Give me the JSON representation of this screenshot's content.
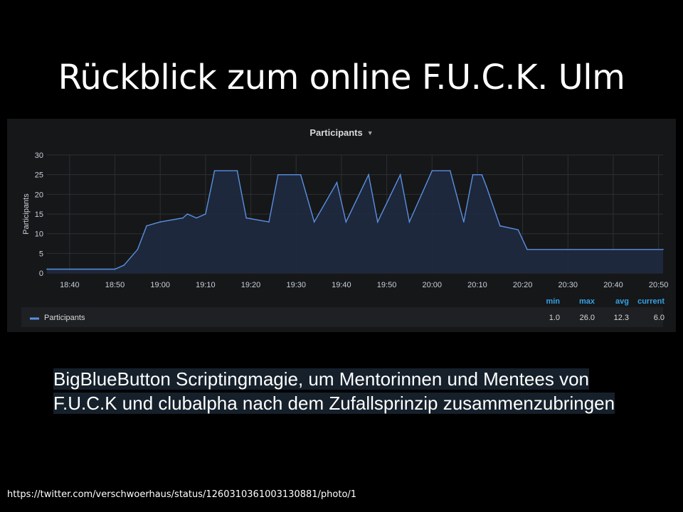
{
  "slide": {
    "title": "Rückblick zum online F.U.C.K. Ulm",
    "caption": "BigBlueButton Scriptingmagie, um Mentorinnen und Mentees von F.U.C.K und clubalpha nach dem Zufallsprinzip zusammenzubringen",
    "source_url": "https://twitter.com/verschwoerhaus/status/1260310361003130881/photo/1"
  },
  "panel": {
    "title": "Participants",
    "caret_icon": "caret-down-icon"
  },
  "chart_data": {
    "type": "line",
    "title": "Participants",
    "ylabel": "Participants",
    "xlabel": "",
    "ylim": [
      0,
      30
    ],
    "xlim": [
      "18:35",
      "20:51"
    ],
    "yticks": [
      0,
      5,
      10,
      15,
      20,
      25,
      30
    ],
    "xticks": [
      "18:40",
      "18:50",
      "19:00",
      "19:10",
      "19:20",
      "19:30",
      "19:40",
      "19:50",
      "20:00",
      "20:10",
      "20:20",
      "20:30",
      "20:40",
      "20:50"
    ],
    "grid": true,
    "colors": {
      "line": "#5b8fe0",
      "fill": "#1e2a40",
      "stat_header": "#33a2e5"
    },
    "series": [
      {
        "name": "Participants",
        "x": [
          "18:35",
          "18:50",
          "18:52",
          "18:55",
          "18:57",
          "19:00",
          "19:05",
          "19:06",
          "19:08",
          "19:10",
          "19:12",
          "19:17",
          "19:19",
          "19:24",
          "19:26",
          "19:31",
          "19:34",
          "19:39",
          "19:41",
          "19:46",
          "19:48",
          "19:53",
          "19:55",
          "20:00",
          "20:04",
          "20:07",
          "20:09",
          "20:11",
          "20:12",
          "20:15",
          "20:19",
          "20:21",
          "20:51"
        ],
        "values": [
          1,
          1,
          2,
          6,
          12,
          13,
          14,
          15,
          14,
          15,
          26,
          26,
          14,
          13,
          25,
          25,
          13,
          23,
          13,
          25,
          13,
          25,
          13,
          26,
          26,
          13,
          25,
          25,
          22,
          12,
          11,
          6,
          6
        ]
      }
    ],
    "legend": {
      "placement": "bottom",
      "stat_headers": [
        "min",
        "max",
        "avg",
        "current"
      ],
      "rows": [
        {
          "name": "Participants",
          "min": "1.0",
          "max": "26.0",
          "avg": "12.3",
          "current": "6.0"
        }
      ]
    }
  }
}
